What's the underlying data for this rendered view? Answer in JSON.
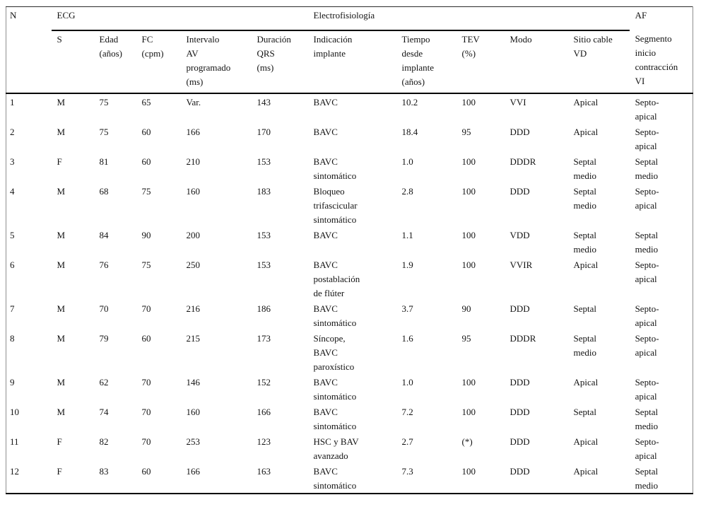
{
  "table": {
    "corner_label": "N",
    "groups": [
      "ECG",
      "Electrofisiología",
      "AF"
    ],
    "columns": [
      "S",
      "Edad\n(años)",
      "FC\n(cpm)",
      "Intervalo\nAV\nprogramado\n(ms)",
      "Duración\nQRS\n(ms)",
      "Indicación\nimplante",
      "Tiempo\ndesde\nimplante\n(años)",
      "TEV\n(%)",
      "Modo",
      "Sitio cable\nVD",
      "Segmento\ninicio\ncontracción\nVI"
    ],
    "rows": [
      [
        "1",
        "M",
        "75",
        "65",
        "Var.",
        "143",
        "BAVC",
        "10.2",
        "100",
        "VVI",
        "Apical",
        "Septo-\napical"
      ],
      [
        "2",
        "M",
        "75",
        "60",
        "166",
        "170",
        "BAVC",
        "18.4",
        "95",
        "DDD",
        "Apical",
        "Septo-\napical"
      ],
      [
        "3",
        "F",
        "81",
        "60",
        "210",
        "153",
        "BAVC\nsintomático",
        "1.0",
        "100",
        "DDDR",
        "Septal\nmedio",
        "Septal\nmedio"
      ],
      [
        "4",
        "M",
        "68",
        "75",
        "160",
        "183",
        "Bloqueo\ntrifascicular\nsintomático",
        "2.8",
        "100",
        "DDD",
        "Septal\nmedio",
        "Septo-\napical"
      ],
      [
        "5",
        "M",
        "84",
        "90",
        "200",
        "153",
        "BAVC",
        "1.1",
        "100",
        "VDD",
        "Septal\nmedio",
        "Septal\nmedio"
      ],
      [
        "6",
        "M",
        "76",
        "75",
        "250",
        "153",
        "BAVC\npostablación\nde flúter",
        "1.9",
        "100",
        "VVIR",
        "Apical",
        "Septo-\napical"
      ],
      [
        "7",
        "M",
        "70",
        "70",
        "216",
        "186",
        "BAVC\nsintomático",
        "3.7",
        "90",
        "DDD",
        "Septal",
        "Septo-\napical"
      ],
      [
        "8",
        "M",
        "79",
        "60",
        "215",
        "173",
        "Síncope,\nBAVC\nparoxístico",
        "1.6",
        "95",
        "DDDR",
        "Septal\nmedio",
        "Septo-\napical"
      ],
      [
        "9",
        "M",
        "62",
        "70",
        "146",
        "152",
        "BAVC\nsintomático",
        "1.0",
        "100",
        "DDD",
        "Apical",
        "Septo-\napical"
      ],
      [
        "10",
        "M",
        "74",
        "70",
        "160",
        "166",
        "BAVC\nsintomático",
        "7.2",
        "100",
        "DDD",
        "Septal",
        "Septal\nmedio"
      ],
      [
        "11",
        "F",
        "82",
        "70",
        "253",
        "123",
        "HSC y BAV\navanzado",
        "2.7",
        "(*)",
        "DDD",
        "Apical",
        "Septo-\napical"
      ],
      [
        "12",
        "F",
        "83",
        "60",
        "166",
        "163",
        "BAVC\nsintomático",
        "7.3",
        "100",
        "DDD",
        "Apical",
        "Septal\nmedio"
      ]
    ],
    "tall_rows": [
      3,
      5,
      7
    ]
  }
}
